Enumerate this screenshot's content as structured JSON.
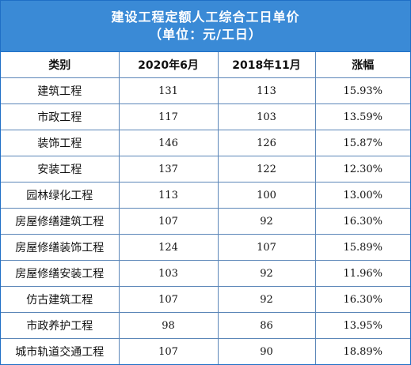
{
  "title": {
    "line1": "建设工程定额人工综合工日单价",
    "line2": "（单位：元/工日）"
  },
  "columns": [
    "类别",
    "2020年6月",
    "2018年11月",
    "涨幅"
  ],
  "rows": [
    {
      "category": "建筑工程",
      "price_2020_06": "131",
      "price_2018_11": "113",
      "increase": "15.93%"
    },
    {
      "category": "市政工程",
      "price_2020_06": "117",
      "price_2018_11": "103",
      "increase": "13.59%"
    },
    {
      "category": "装饰工程",
      "price_2020_06": "146",
      "price_2018_11": "126",
      "increase": "15.87%"
    },
    {
      "category": "安装工程",
      "price_2020_06": "137",
      "price_2018_11": "122",
      "increase": "12.30%"
    },
    {
      "category": "园林绿化工程",
      "price_2020_06": "113",
      "price_2018_11": "100",
      "increase": "13.00%"
    },
    {
      "category": "房屋修缮建筑工程",
      "price_2020_06": "107",
      "price_2018_11": "92",
      "increase": "16.30%"
    },
    {
      "category": "房屋修缮装饰工程",
      "price_2020_06": "124",
      "price_2018_11": "107",
      "increase": "15.89%"
    },
    {
      "category": "房屋修缮安装工程",
      "price_2020_06": "103",
      "price_2018_11": "92",
      "increase": "11.96%"
    },
    {
      "category": "仿古建筑工程",
      "price_2020_06": "107",
      "price_2018_11": "92",
      "increase": "16.30%"
    },
    {
      "category": "市政养护工程",
      "price_2020_06": "98",
      "price_2018_11": "86",
      "increase": "13.95%"
    },
    {
      "category": "城市轨道交通工程",
      "price_2020_06": "107",
      "price_2018_11": "90",
      "increase": "18.89%"
    }
  ],
  "colors": {
    "title_background": "#3a8ad6",
    "title_text": "#ffffff",
    "grid_line": "#5b86b8"
  }
}
